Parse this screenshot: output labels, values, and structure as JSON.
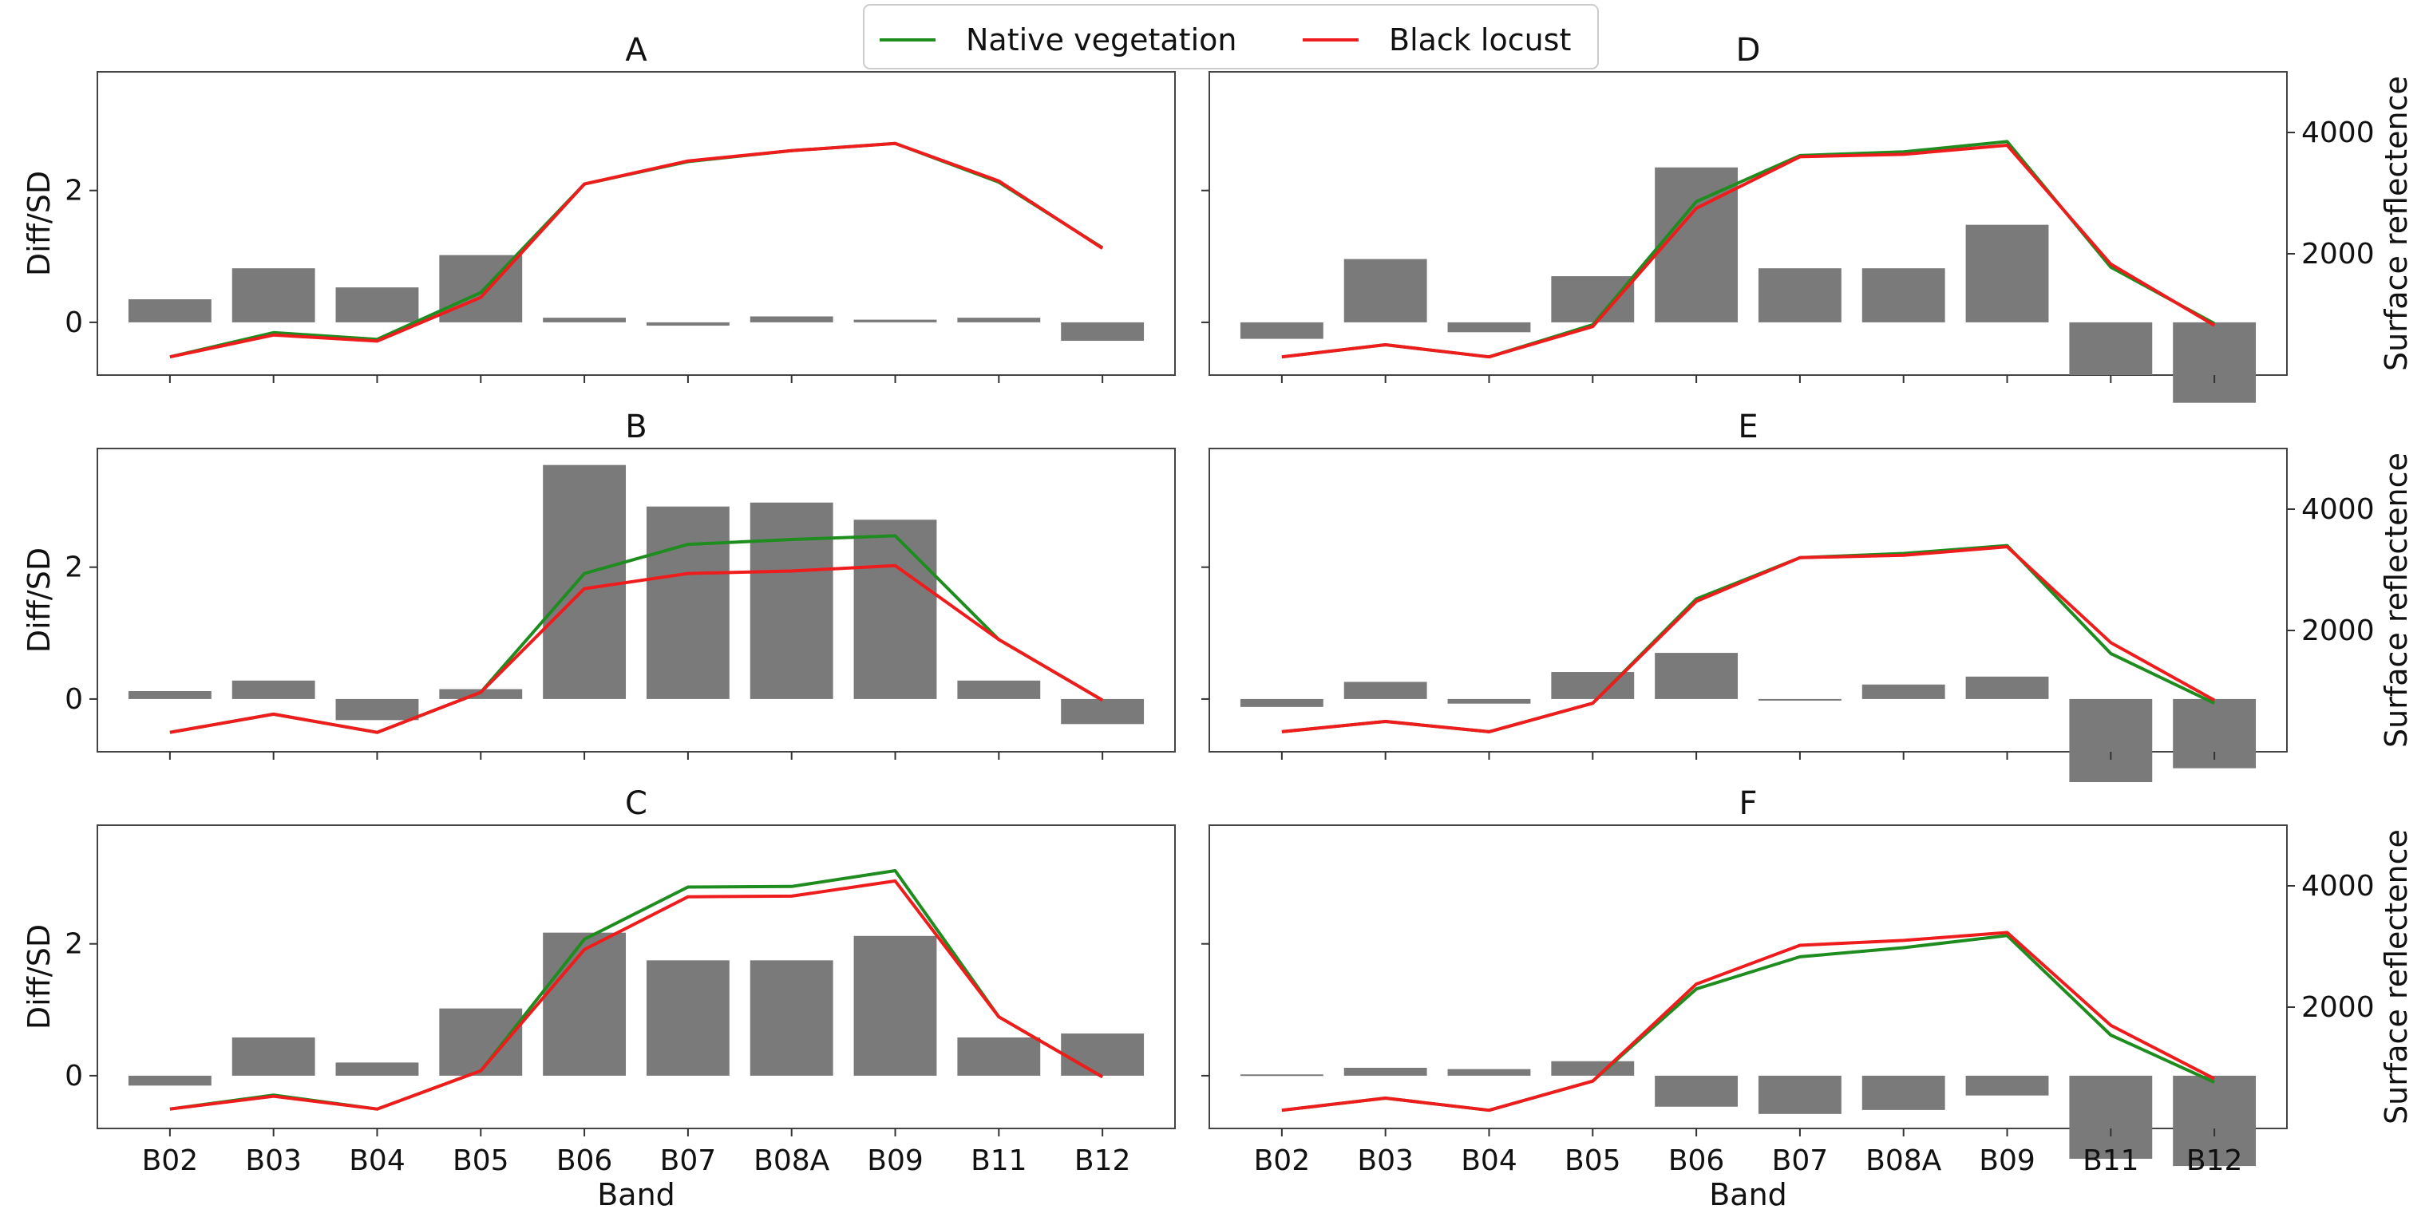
{
  "colors": {
    "native": "#1f8c1f",
    "locust": "#ee1c1c",
    "bar": "#7a7a7a"
  },
  "legend": {
    "native": "Native vegetation",
    "locust": "Black locust"
  },
  "chart_data": [
    {
      "type": "bar+line",
      "title": "A",
      "ylabel": "Diff/SD",
      "xlabel": "",
      "categories": [
        "B02",
        "B03",
        "B04",
        "B05",
        "B06",
        "B07",
        "B08A",
        "B09",
        "B11",
        "B12"
      ],
      "bars": [
        0.35,
        0.82,
        0.53,
        1.02,
        0.07,
        -0.05,
        0.09,
        0.04,
        0.07,
        -0.28
      ],
      "lines": {
        "native": [
          300,
          700,
          590,
          1360,
          3150,
          3520,
          3700,
          3820,
          3180,
          2100
        ],
        "locust": [
          300,
          660,
          560,
          1280,
          3150,
          3530,
          3700,
          3820,
          3200,
          2090
        ]
      }
    },
    {
      "type": "bar+line",
      "title": "B",
      "ylabel": "Diff/SD",
      "xlabel": "",
      "categories": [
        "B02",
        "B03",
        "B04",
        "B05",
        "B06",
        "B07",
        "B08A",
        "B09",
        "B11",
        "B12"
      ],
      "bars": [
        0.12,
        0.28,
        -0.32,
        0.15,
        3.55,
        2.92,
        2.98,
        2.72,
        0.28,
        -0.38
      ],
      "lines": {
        "native": [
          320,
          620,
          320,
          980,
          2940,
          3420,
          3500,
          3560,
          1850,
          850
        ],
        "locust": [
          320,
          620,
          320,
          980,
          2690,
          2940,
          2980,
          3070,
          1850,
          850
        ]
      }
    },
    {
      "type": "bar+line",
      "title": "C",
      "ylabel": "Diff/SD",
      "xlabel": "Band",
      "categories": [
        "B02",
        "B03",
        "B04",
        "B05",
        "B06",
        "B07",
        "B08A",
        "B09",
        "B11",
        "B12"
      ],
      "bars": [
        -0.15,
        0.58,
        0.2,
        1.02,
        2.17,
        1.75,
        1.75,
        2.12,
        0.58,
        0.64
      ],
      "lines": {
        "native": [
          320,
          550,
          320,
          950,
          3120,
          3980,
          3990,
          4250,
          1840,
          850
        ],
        "locust": [
          320,
          530,
          320,
          950,
          2950,
          3820,
          3830,
          4080,
          1840,
          850
        ]
      }
    },
    {
      "type": "bar+line",
      "title": "D",
      "ylabel": "",
      "xlabel": "",
      "ylabel_right": "Surface reflectence",
      "yticks_right": [
        2000,
        4000
      ],
      "categories": [
        "B02",
        "B03",
        "B04",
        "B05",
        "B06",
        "B07",
        "B08A",
        "B09",
        "B11",
        "B12"
      ],
      "bars": [
        -0.25,
        0.96,
        -0.15,
        0.7,
        2.35,
        0.82,
        0.82,
        1.48,
        -0.8,
        -1.22
      ],
      "lines": {
        "native": [
          300,
          500,
          300,
          830,
          2860,
          3620,
          3680,
          3850,
          1780,
          850
        ],
        "locust": [
          300,
          500,
          300,
          800,
          2750,
          3600,
          3640,
          3790,
          1830,
          820
        ]
      }
    },
    {
      "type": "bar+line",
      "title": "E",
      "ylabel": "",
      "xlabel": "",
      "ylabel_right": "Surface reflectence",
      "yticks_right": [
        2000,
        4000
      ],
      "categories": [
        "B02",
        "B03",
        "B04",
        "B05",
        "B06",
        "B07",
        "B08A",
        "B09",
        "B11",
        "B12"
      ],
      "bars": [
        -0.12,
        0.26,
        -0.07,
        0.41,
        0.7,
        -0.02,
        0.22,
        0.34,
        -1.26,
        -1.05
      ],
      "lines": {
        "native": [
          330,
          500,
          330,
          800,
          2520,
          3200,
          3270,
          3400,
          1620,
          800
        ],
        "locust": [
          330,
          500,
          330,
          800,
          2480,
          3200,
          3240,
          3380,
          1800,
          850
        ]
      }
    },
    {
      "type": "bar+line",
      "title": "F",
      "ylabel": "",
      "xlabel": "Band",
      "ylabel_right": "Surface reflectence",
      "yticks_right": [
        2000,
        4000
      ],
      "categories": [
        "B02",
        "B03",
        "B04",
        "B05",
        "B06",
        "B07",
        "B08A",
        "B09",
        "B11",
        "B12"
      ],
      "bars": [
        0.02,
        0.12,
        0.1,
        0.22,
        -0.47,
        -0.58,
        -0.52,
        -0.3,
        -1.26,
        -1.37
      ],
      "lines": {
        "native": [
          300,
          500,
          300,
          780,
          2300,
          2830,
          2980,
          3180,
          1540,
          760
        ],
        "locust": [
          300,
          500,
          300,
          780,
          2380,
          3020,
          3100,
          3230,
          1700,
          820
        ]
      }
    }
  ]
}
